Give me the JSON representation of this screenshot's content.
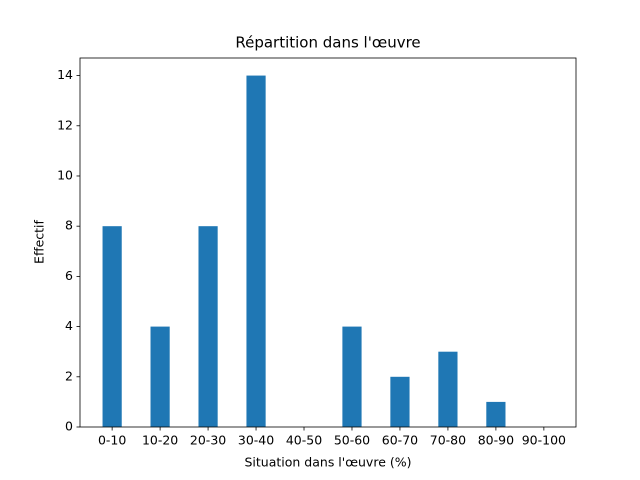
{
  "chart_data": {
    "type": "bar",
    "title": "Répartition dans l'œuvre",
    "x_label": "Situation dans l'œuvre (%)",
    "y_label": "Effectif",
    "categories": [
      "0-10",
      "10-20",
      "20-30",
      "30-40",
      "40-50",
      "50-60",
      "60-70",
      "70-80",
      "80-90",
      "90-100"
    ],
    "values": [
      8,
      4,
      8,
      14,
      0,
      4,
      2,
      3,
      1,
      0
    ],
    "color": "#1f77b4",
    "ylim": [
      0,
      14.7
    ],
    "yticks": [
      0,
      2,
      4,
      6,
      8,
      10,
      12,
      14
    ],
    "grid": false
  }
}
